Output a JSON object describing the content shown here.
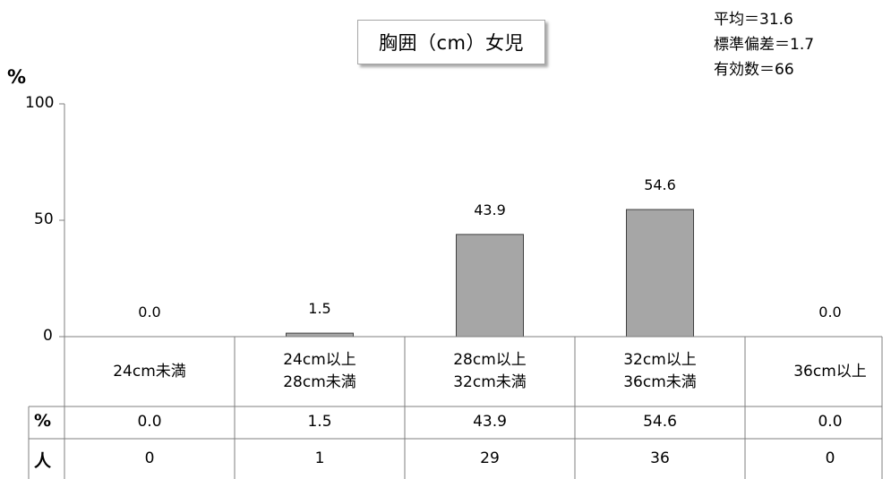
{
  "chart_data": {
    "type": "bar",
    "title": "胸囲（cm）女児",
    "stats": [
      "平均＝31.6",
      "標準偏差＝1.7",
      "有効数＝66"
    ],
    "y_unit": "%",
    "ylim": [
      0,
      100
    ],
    "yticks": [
      "0",
      "50",
      "100"
    ],
    "categories": [
      [
        "24cm未満"
      ],
      [
        "24cm以上",
        "28cm未満"
      ],
      [
        "28cm以上",
        "32cm未満"
      ],
      [
        "32cm以上",
        "36cm未満"
      ],
      [
        "36cm以上"
      ]
    ],
    "values": [
      0.0,
      1.5,
      43.9,
      54.6,
      0.0
    ],
    "value_labels": [
      "0.0",
      "1.5",
      "43.9",
      "54.6",
      "0.0"
    ],
    "bar_color": "#a6a6a6",
    "table": {
      "rows": [
        {
          "head": "%",
          "cells": [
            "0.0",
            "1.5",
            "43.9",
            "54.6",
            "0.0"
          ]
        },
        {
          "head": "人",
          "cells": [
            "0",
            "1",
            "29",
            "36",
            "0"
          ]
        }
      ]
    }
  }
}
